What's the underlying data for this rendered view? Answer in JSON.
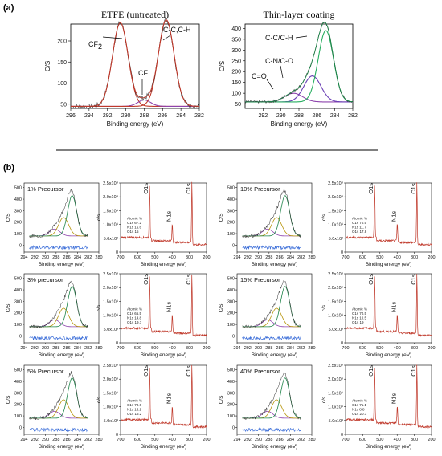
{
  "figure": {
    "label_a": "(a)",
    "label_b": "(b)"
  },
  "chart_data": [
    {
      "id": "a-left",
      "type": "line",
      "title": "ETFE (untreated)",
      "xlabel": "Binding energy (eV)",
      "ylabel": "C/S",
      "xlim": [
        296,
        282
      ],
      "ylim": [
        40,
        240
      ],
      "xticks": [
        296,
        294,
        292,
        290,
        288,
        286,
        284,
        282
      ],
      "yticks": [
        50,
        100,
        150,
        200
      ],
      "peaks": [
        {
          "label": "CF2",
          "center": 290.6,
          "height": 198,
          "sigma": 0.85,
          "color": "#c0392b"
        },
        {
          "label": "CF",
          "center": 288.0,
          "height": 15,
          "sigma": 0.7,
          "color": "#8e44ad"
        },
        {
          "label": "C-C,C-H",
          "center": 285.6,
          "height": 205,
          "sigma": 0.85,
          "color": "#c0392b"
        }
      ],
      "baseline": 45,
      "annotations": [
        "CF",
        "2",
        "CF",
        "C-C,C-H"
      ]
    },
    {
      "id": "a-right",
      "type": "line",
      "title": "Thin-layer coating",
      "xlabel": "Binding energy (eV)",
      "ylabel": "C/S",
      "xlim": [
        294,
        282
      ],
      "ylim": [
        30,
        420
      ],
      "xticks": [
        292,
        290,
        288,
        286,
        284,
        282
      ],
      "yticks": [
        50,
        100,
        150,
        200,
        250,
        300,
        350,
        400
      ],
      "peaks": [
        {
          "label": "C=O",
          "center": 288.6,
          "height": 40,
          "sigma": 1.0,
          "color": "#8e44ad"
        },
        {
          "label": "C-N/C-O",
          "center": 286.5,
          "height": 120,
          "sigma": 0.95,
          "color": "#6a3fb5"
        },
        {
          "label": "C-C/C-H",
          "center": 285.0,
          "height": 330,
          "sigma": 0.85,
          "color": "#27ae60"
        }
      ],
      "baseline": 60,
      "annotations": [
        "C-C/C-H",
        "C-N/C-O",
        "C=O"
      ]
    },
    {
      "id": "b-hr-1",
      "type": "line",
      "label": "1% Precursor",
      "xlabel": "Binding energy (eV)",
      "ylabel": "C/S",
      "xticks": [
        294,
        292,
        290,
        288,
        286,
        284,
        282,
        280
      ],
      "yticks": [
        0,
        100,
        200,
        300,
        400,
        500
      ]
    },
    {
      "id": "b-hr-2",
      "type": "line",
      "label": "3% precursor",
      "xlabel": "Binding energy (eV)",
      "ylabel": "C/S",
      "xticks": [
        294,
        292,
        290,
        288,
        286,
        284,
        282,
        280
      ],
      "yticks": [
        0,
        100,
        200,
        300,
        400,
        500
      ]
    },
    {
      "id": "b-hr-3",
      "type": "line",
      "label": "5% Precursor",
      "xlabel": "Binding energy (eV)",
      "ylabel": "C/S",
      "xticks": [
        294,
        292,
        290,
        288,
        286,
        284,
        282,
        280
      ],
      "yticks": [
        0,
        100,
        200,
        300,
        400,
        500
      ]
    },
    {
      "id": "b-hr-4",
      "type": "line",
      "label": "10% Precursor",
      "xlabel": "Binding energy (eV)",
      "ylabel": "C/S",
      "xticks": [
        294,
        292,
        290,
        288,
        286,
        284,
        282,
        280
      ],
      "yticks": [
        0,
        100,
        200,
        300,
        400,
        500
      ]
    },
    {
      "id": "b-hr-5",
      "type": "line",
      "label": "15% Precursor",
      "xlabel": "Binding energy (eV)",
      "ylabel": "C/S",
      "xticks": [
        294,
        292,
        290,
        288,
        286,
        284,
        282,
        280
      ],
      "yticks": [
        0,
        100,
        200,
        300,
        400,
        500
      ]
    },
    {
      "id": "b-hr-6",
      "type": "line",
      "label": "40% Precursor",
      "xlabel": "Binding energy (eV)",
      "ylabel": "C/S",
      "xticks": [
        294,
        292,
        290,
        288,
        286,
        284,
        282,
        280
      ],
      "yticks": [
        0,
        100,
        200,
        300,
        400,
        500
      ]
    },
    {
      "id": "b-sv-1",
      "type": "line",
      "xlabel": "Binding energy (eV)",
      "ylabel": "c/s",
      "xticks": [
        700,
        600,
        500,
        400,
        300,
        200
      ],
      "yticks": [
        "0",
        "5.0x10³",
        "1.0x10⁴",
        "1.5x10⁴",
        "2.0x10⁴",
        "2.5x10⁴"
      ],
      "peaks": [
        "O1s",
        "N1s",
        "C1s"
      ],
      "composition": [
        "Atomic %",
        "C1s 67.2",
        "N1s 16.6",
        "O1s 15"
      ]
    },
    {
      "id": "b-sv-2",
      "type": "line",
      "xlabel": "Binding energy (eV)",
      "ylabel": "c/s",
      "xticks": [
        700,
        600,
        500,
        400,
        300,
        200
      ],
      "yticks": [
        "0",
        "5.0x10³",
        "1.0x10⁴",
        "1.5x10⁴",
        "2.0x10⁴",
        "2.5x10⁴"
      ],
      "peaks": [
        "O1s",
        "N1s",
        "C1s"
      ],
      "composition": [
        "Atomic %",
        "C1s 65.5",
        "N1s 14.8",
        "O1s 19.7"
      ]
    },
    {
      "id": "b-sv-3",
      "type": "line",
      "xlabel": "Binding energy (eV)",
      "ylabel": "c/s",
      "xticks": [
        700,
        600,
        500,
        400,
        300,
        200
      ],
      "yticks": [
        "0",
        "5.0x10³",
        "1.0x10⁴",
        "1.5x10⁴",
        "2.0x10⁴",
        "2.5x10⁴"
      ],
      "peaks": [
        "O1s",
        "N1s",
        "C1s"
      ],
      "composition": [
        "Atomic %",
        "C1s 70.6",
        "N1s 13.2",
        "O1s 16.2"
      ]
    },
    {
      "id": "b-sv-4",
      "type": "line",
      "xlabel": "Binding energy (eV)",
      "ylabel": "c/s",
      "xticks": [
        700,
        600,
        500,
        400,
        300,
        200
      ],
      "yticks": [
        "0",
        "5.0x10³",
        "1.0x10⁴",
        "1.5x10⁴",
        "2.0x10⁴",
        "2.5x10⁴"
      ],
      "peaks": [
        "O1s",
        "N1s",
        "C1s"
      ],
      "composition": [
        "Atomic %",
        "C1s 70.5",
        "N1s 11.7",
        "O1s 17.8"
      ]
    },
    {
      "id": "b-sv-5",
      "type": "line",
      "xlabel": "Binding energy (eV)",
      "ylabel": "c/s",
      "xticks": [
        700,
        600,
        500,
        400,
        300,
        200
      ],
      "yticks": [
        "0",
        "5.0x10³",
        "1.0x10⁴",
        "1.5x10⁴",
        "2.0x10⁴",
        "2.5x10⁴"
      ],
      "peaks": [
        "O1s",
        "N1s",
        "C1s"
      ],
      "composition": [
        "Atomic %",
        "C1s 70.5",
        "N1s 10.5",
        "O1s 19"
      ]
    },
    {
      "id": "b-sv-6",
      "type": "line",
      "xlabel": "Binding energy (eV)",
      "ylabel": "c/s",
      "xticks": [
        700,
        600,
        500,
        400,
        300,
        200
      ],
      "yticks": [
        "0",
        "5.0x10³",
        "1.0x10⁴",
        "1.5x10⁴",
        "2.0x10⁴",
        "2.5x10⁴"
      ],
      "peaks": [
        "O1s",
        "N1s",
        "C1s"
      ],
      "composition": [
        "Atomic %",
        "C1s 71.1",
        "N1s 8.8",
        "O1s 20.1"
      ]
    }
  ]
}
